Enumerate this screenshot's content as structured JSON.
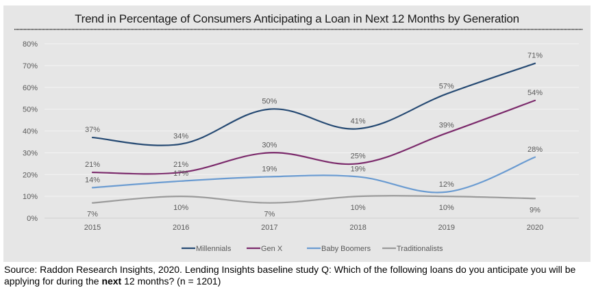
{
  "chart_data": {
    "type": "line",
    "title": "Trend in Percentage of Consumers Anticipating a Loan in Next 12 Months by Generation",
    "xlabel": "",
    "ylabel": "",
    "categories": [
      "2015",
      "2016",
      "2017",
      "2018",
      "2019",
      "2020"
    ],
    "y_ticks": [
      "0%",
      "10%",
      "20%",
      "30%",
      "40%",
      "50%",
      "60%",
      "70%",
      "80%"
    ],
    "ylim": [
      0,
      80
    ],
    "grid": true,
    "smooth": true,
    "legend_position": "bottom",
    "series": [
      {
        "name": "Millennials",
        "color": "#264a73",
        "values": [
          37,
          34,
          50,
          41,
          57,
          71
        ],
        "labels": [
          "37%",
          "34%",
          "50%",
          "41%",
          "57%",
          "71%"
        ],
        "label_pos": [
          "above",
          "above",
          "above",
          "above",
          "above",
          "above"
        ]
      },
      {
        "name": "Gen X",
        "color": "#7b2a6b",
        "values": [
          21,
          21,
          30,
          25,
          39,
          54
        ],
        "labels": [
          "21%",
          "21%",
          "30%",
          "25%",
          "39%",
          "54%"
        ],
        "label_pos": [
          "above",
          "above",
          "above",
          "above",
          "above",
          "above"
        ]
      },
      {
        "name": "Baby Boomers",
        "color": "#6a9bd1",
        "values": [
          14,
          17,
          19,
          19,
          12,
          28
        ],
        "labels": [
          "14%",
          "17%",
          "19%",
          "19%",
          "12%",
          "28%"
        ],
        "label_pos": [
          "above",
          "above",
          "above",
          "above",
          "above",
          "above"
        ]
      },
      {
        "name": "Traditionalists",
        "color": "#9a9a9a",
        "values": [
          7,
          10,
          7,
          10,
          10,
          9
        ],
        "labels": [
          "7%",
          "10%",
          "7%",
          "10%",
          "10%",
          "9%"
        ],
        "label_pos": [
          "below",
          "below",
          "below",
          "below",
          "below",
          "below"
        ]
      }
    ]
  },
  "source": {
    "prefix": "Source: Raddon Research Insights, 2020. Lending Insights baseline study Q: Which of the following loans do you anticipate you will be applying for during the ",
    "bold": "next",
    "suffix": " 12 months? (n = 1201)"
  }
}
